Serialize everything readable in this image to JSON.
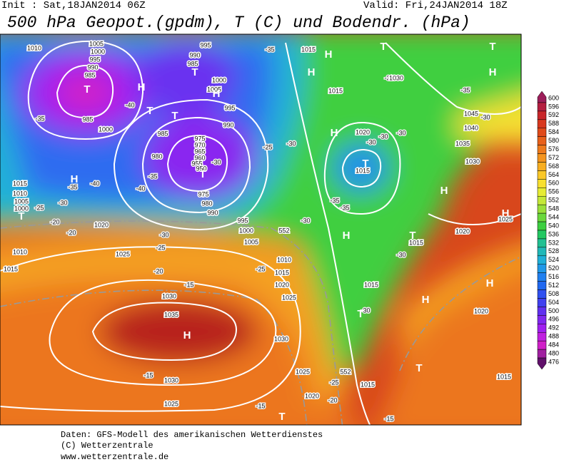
{
  "header": {
    "init": "Init : Sat,18JAN2014 06Z",
    "valid": "Valid: Fri,24JAN2014 18Z",
    "title": "500 hPa Geopot.(gpdm), T (C) und Bodendr. (hPa)"
  },
  "footer": [
    "Daten: GFS-Modell des amerikanischen Wetterdienstes",
    "(C) Wetterzentrale",
    "www.wetterzentrale.de"
  ],
  "map": {
    "pressure_labels": [
      "1010",
      "1005",
      "1000",
      "995",
      "990",
      "985",
      "985",
      "1000",
      "995",
      "990",
      "985",
      "1000",
      "1005",
      "995",
      "990",
      "985",
      "980",
      "975",
      "970",
      "965",
      "960",
      "955",
      "950",
      "975",
      "980",
      "990",
      "995",
      "1000",
      "1005",
      "1015",
      "1030",
      "1015",
      "1020",
      "1015",
      "1045",
      "1040",
      "1035",
      "1030",
      "1015",
      "1010",
      "1005",
      "1000",
      "1020",
      "1025",
      "1010",
      "1015",
      "1010",
      "1015",
      "1020",
      "1025",
      "1030",
      "1035",
      "1030",
      "1030",
      "1025",
      "1020",
      "1025",
      "1015",
      "1015",
      "1015",
      "1020",
      "1025",
      "1020",
      "1015",
      "552",
      "552"
    ],
    "centers": [
      "T",
      "H",
      "T",
      "T",
      "H",
      "T",
      "T",
      "H",
      "H",
      "H",
      "T",
      "H",
      "T",
      "H",
      "T",
      "H",
      "H",
      "T",
      "T",
      "H",
      "H",
      "H",
      "H",
      "T",
      "T",
      "T"
    ],
    "temperature_labels": [
      "-40",
      "-35",
      "-35",
      "-30",
      "-35",
      "-30",
      "-25",
      "-30",
      "-30",
      "-30",
      "-30",
      "-35",
      "-40",
      "-40",
      "-35",
      "-30",
      "-25",
      "-20",
      "-20",
      "-30",
      "-25",
      "-20",
      "-15",
      "-25",
      "-30",
      "-35",
      "-35",
      "-30",
      "-30",
      "-25",
      "-20",
      "-15",
      "-15",
      "-15",
      "-30"
    ]
  },
  "legend": {
    "levels": [
      {
        "value": 600,
        "color": "#9c1e5a"
      },
      {
        "value": 596,
        "color": "#b41e40"
      },
      {
        "value": 592,
        "color": "#c8262a"
      },
      {
        "value": 588,
        "color": "#d8381e"
      },
      {
        "value": 584,
        "color": "#e04a1a"
      },
      {
        "value": 580,
        "color": "#e8601a"
      },
      {
        "value": 576,
        "color": "#ee7a1c"
      },
      {
        "value": 572,
        "color": "#f4941e"
      },
      {
        "value": 568,
        "color": "#f8ae20"
      },
      {
        "value": 564,
        "color": "#fac828"
      },
      {
        "value": 560,
        "color": "#f8e030"
      },
      {
        "value": 556,
        "color": "#e6ec34"
      },
      {
        "value": 552,
        "color": "#c4e838"
      },
      {
        "value": 548,
        "color": "#9ae03a"
      },
      {
        "value": 544,
        "color": "#6ad83c"
      },
      {
        "value": 540,
        "color": "#3ccf40"
      },
      {
        "value": 536,
        "color": "#22c862"
      },
      {
        "value": 532,
        "color": "#20c092"
      },
      {
        "value": 528,
        "color": "#20b8b8"
      },
      {
        "value": 524,
        "color": "#20b0d8"
      },
      {
        "value": 520,
        "color": "#2098e8"
      },
      {
        "value": 516,
        "color": "#2080f0"
      },
      {
        "value": 512,
        "color": "#2068f0"
      },
      {
        "value": 508,
        "color": "#3050f0"
      },
      {
        "value": 504,
        "color": "#4040f0"
      },
      {
        "value": 500,
        "color": "#6030f0"
      },
      {
        "value": 496,
        "color": "#8028f0"
      },
      {
        "value": 492,
        "color": "#a020f0"
      },
      {
        "value": 488,
        "color": "#c020e0"
      },
      {
        "value": 484,
        "color": "#d020c8"
      },
      {
        "value": 480,
        "color": "#a020a0"
      },
      {
        "value": 476,
        "color": "#60106a"
      }
    ]
  }
}
